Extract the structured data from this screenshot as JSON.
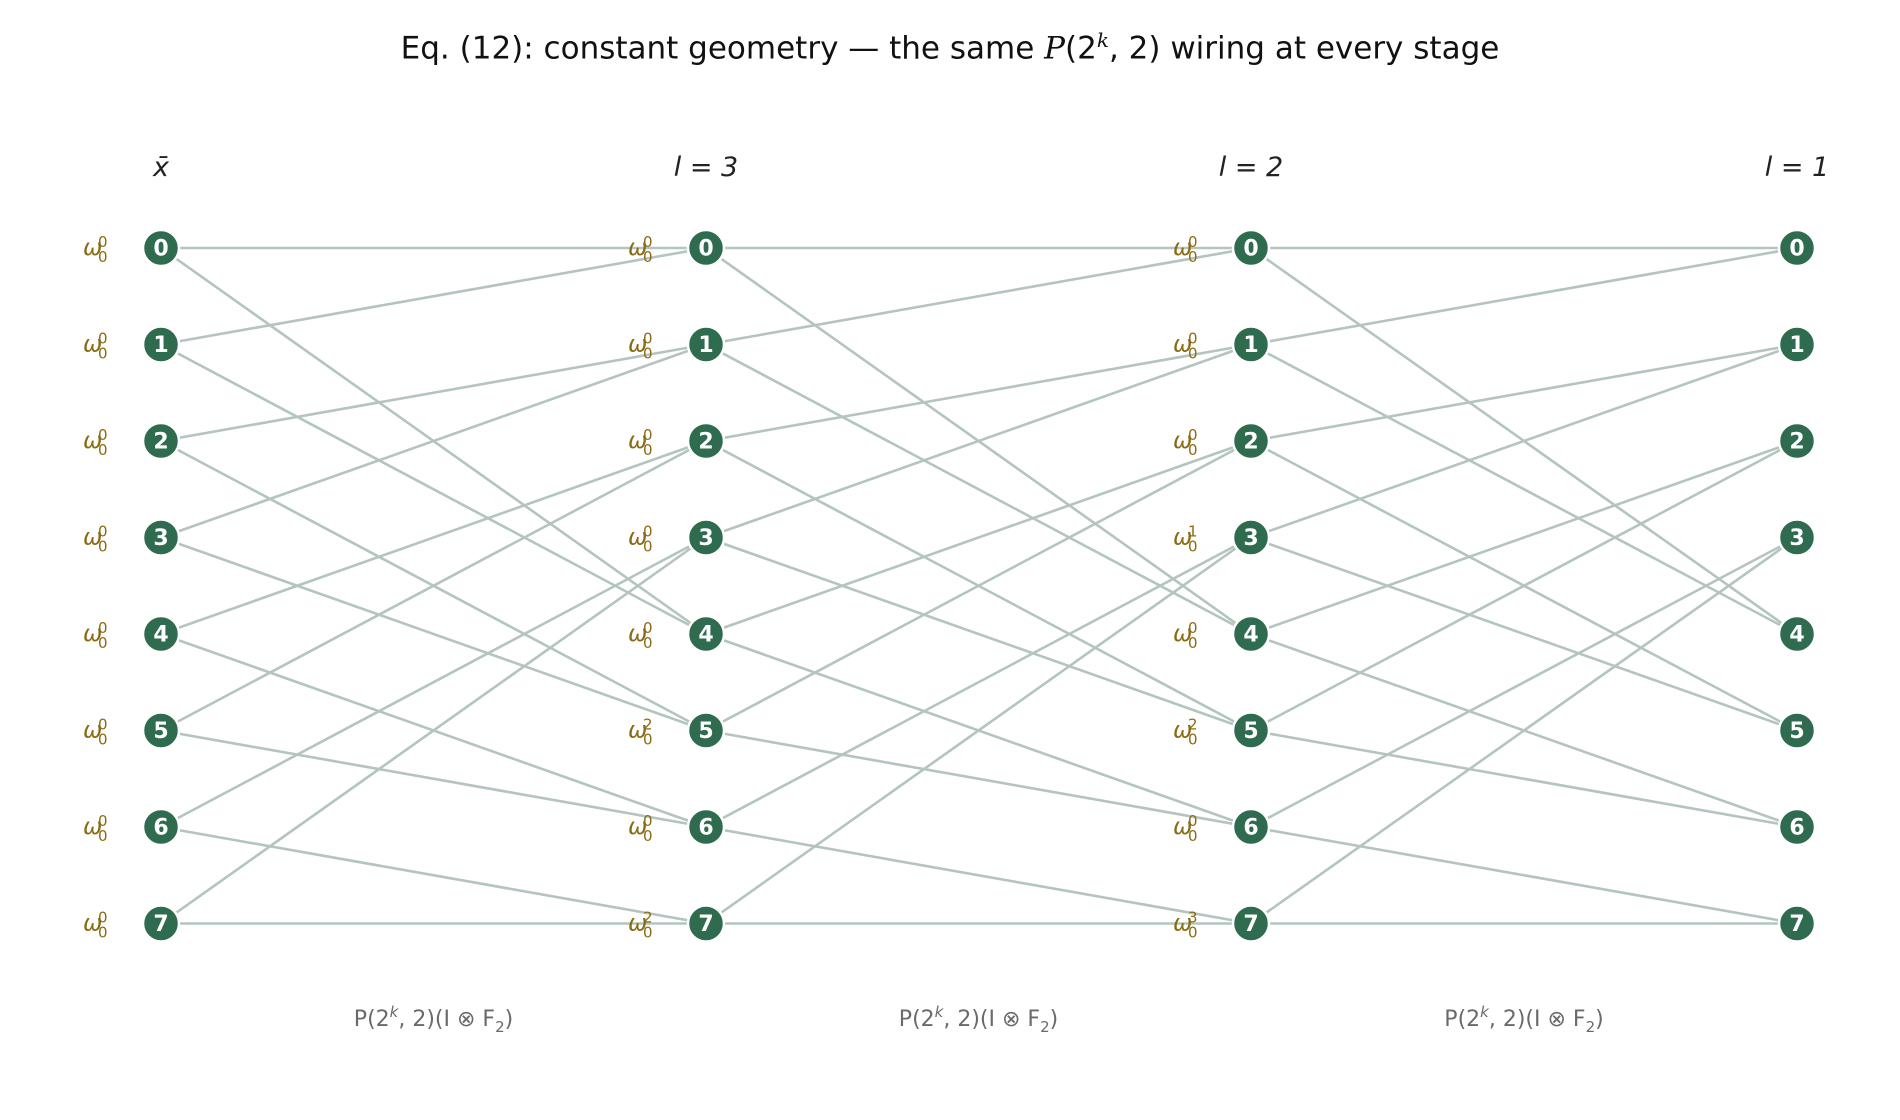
{
  "title": {
    "prefix": "Eq. (12): constant geometry — the same ",
    "P": "P",
    "open": "(2",
    "sup": "k",
    "close": ", 2) wiring at every stage"
  },
  "diagram": {
    "columns": [
      {
        "label": "x̄",
        "twiddles": [
          [
            0,
            0
          ],
          [
            0,
            0
          ],
          [
            0,
            0
          ],
          [
            0,
            0
          ],
          [
            0,
            0
          ],
          [
            0,
            0
          ],
          [
            0,
            0
          ],
          [
            0,
            0
          ]
        ]
      },
      {
        "label": "l = 3",
        "twiddles": [
          [
            0,
            0
          ],
          [
            0,
            0
          ],
          [
            0,
            0
          ],
          [
            0,
            0
          ],
          [
            0,
            0
          ],
          [
            0,
            2
          ],
          [
            0,
            0
          ],
          [
            0,
            2
          ]
        ]
      },
      {
        "label": "l = 2",
        "twiddles": [
          [
            0,
            0
          ],
          [
            0,
            0
          ],
          [
            0,
            0
          ],
          [
            0,
            1
          ],
          [
            0,
            0
          ],
          [
            0,
            2
          ],
          [
            0,
            0
          ],
          [
            0,
            3
          ]
        ]
      },
      {
        "label": "l = 1",
        "twiddles": null
      }
    ],
    "node_labels": [
      "0",
      "1",
      "2",
      "3",
      "4",
      "5",
      "6",
      "7"
    ],
    "twiddle_symbol": "ω",
    "stage_captions": [
      "P(2k, 2)(I ⊗ F2)",
      "P(2k, 2)(I ⊗ F2)",
      "P(2k, 2)(I ⊗ F2)"
    ],
    "caption_parts": {
      "a": "P(2",
      "k": "k",
      "b": ", 2)(I ⊗ F",
      "sub": "2",
      "c": ")"
    },
    "wiring_rule": "node i connects to nodes floor(i/2) and floor(i/2)+4 of the next stage",
    "colors": {
      "node": "#2e6b4f",
      "edge": "#b3c5bd",
      "twiddle": "#8a6a12",
      "caption": "#6a6a6a"
    }
  }
}
